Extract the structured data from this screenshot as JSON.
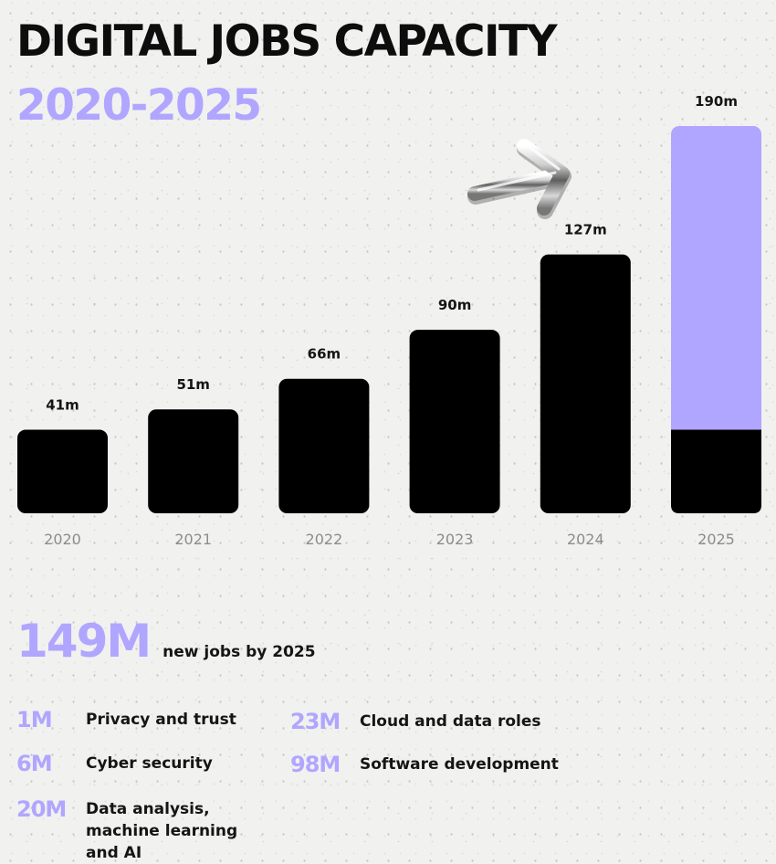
{
  "title": "DIGITAL JOBS CAPACITY",
  "subtitle": "2020-2025",
  "colors": {
    "accent": "#b0a6ff",
    "bar": "#000000",
    "axis_label": "#8c8c8c",
    "text": "#111111"
  },
  "chart_data": {
    "type": "bar",
    "title": "DIGITAL JOBS CAPACITY",
    "subtitle": "2020-2025",
    "categories": [
      "2020",
      "2021",
      "2022",
      "2023",
      "2024",
      "2025"
    ],
    "values": [
      41,
      51,
      66,
      90,
      127,
      190
    ],
    "labels": [
      "41m",
      "51m",
      "66m",
      "90m",
      "127m",
      "190m"
    ],
    "unit": "m",
    "highlight": {
      "category": "2025",
      "split_values": [
        41,
        149
      ],
      "note": "new jobs by 2025"
    },
    "ylim": [
      0,
      190
    ],
    "xlabel": "",
    "ylabel": "",
    "grid": false
  },
  "summary": {
    "value": "149M",
    "text": "new jobs by 2025"
  },
  "breakdown": [
    {
      "value": "1M",
      "label": "Privacy and trust"
    },
    {
      "value": "6M",
      "label": "Cyber security"
    },
    {
      "value": "20M",
      "label": "Data analysis, machine learning and AI"
    },
    {
      "value": "23M",
      "label": "Cloud and data roles"
    },
    {
      "value": "98M",
      "label": "Software development"
    }
  ],
  "decorations": {
    "arrow_icon": "chrome-arrow-up-right-icon"
  }
}
